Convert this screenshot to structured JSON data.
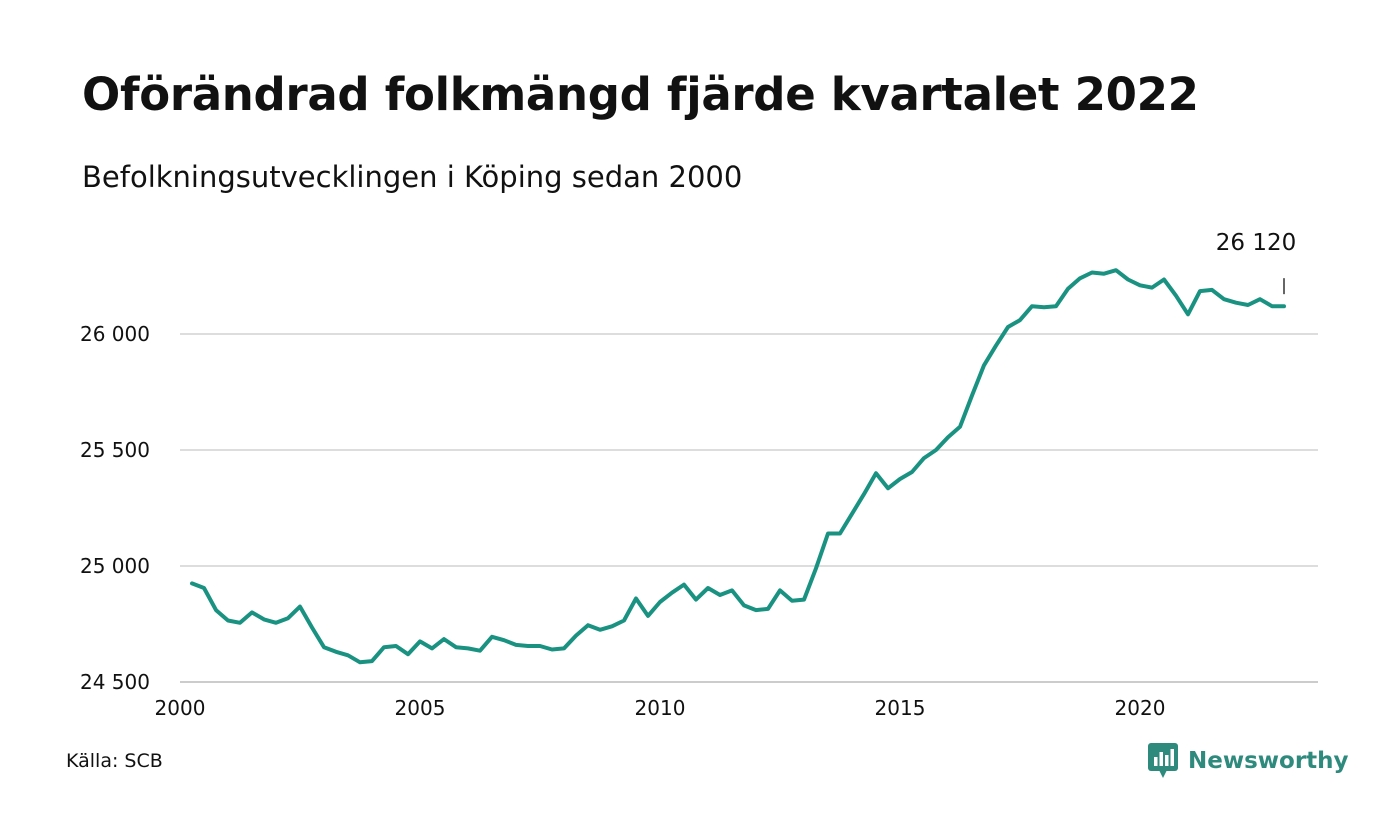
{
  "title": "Oförändrad folkmängd fjärde kvartalet 2022",
  "subtitle": "Befolkningsutvecklingen i Köping sedan 2000",
  "source": "Källa: SCB",
  "brand": {
    "name": "Newsworthy",
    "icon": "chart-speech-bubble-icon",
    "color": "#2f8a7e"
  },
  "chart_data": {
    "type": "line",
    "title": "Oförändrad folkmängd fjärde kvartalet 2022",
    "subtitle": "Befolkningsutvecklingen i Köping sedan 2000",
    "xlabel": "",
    "ylabel": "",
    "xlim": [
      2000,
      2023.5
    ],
    "ylim": [
      24500,
      26450
    ],
    "x_ticks": [
      2000,
      2005,
      2010,
      2015,
      2020
    ],
    "x_tick_labels": [
      "2000",
      "2005",
      "2010",
      "2015",
      "2020"
    ],
    "y_ticks": [
      24500,
      25000,
      25500,
      26000
    ],
    "y_tick_labels": [
      "24 500",
      "25 000",
      "25 500",
      "26 000"
    ],
    "grid": "horizontal",
    "line_color": "#1a9282",
    "end_label": "26 120",
    "series": [
      {
        "x": [
          2000.25,
          2000.5,
          2000.75,
          2001.0,
          2001.25,
          2001.5,
          2001.75,
          2002.0,
          2002.25,
          2002.5,
          2002.75,
          2003.0,
          2003.25,
          2003.5,
          2003.75,
          2004.0,
          2004.25,
          2004.5,
          2004.75,
          2005.0,
          2005.25,
          2005.5,
          2005.75,
          2006.0,
          2006.25,
          2006.5,
          2006.75,
          2007.0,
          2007.25,
          2007.5,
          2007.75,
          2008.0,
          2008.25,
          2008.5,
          2008.75,
          2009.0,
          2009.25,
          2009.5,
          2009.75,
          2010.0,
          2010.25,
          2010.5,
          2010.75,
          2011.0,
          2011.25,
          2011.5,
          2011.75,
          2012.0,
          2012.25,
          2012.5,
          2012.75,
          2013.0,
          2013.25,
          2013.5,
          2013.75,
          2014.0,
          2014.25,
          2014.5,
          2014.75,
          2015.0,
          2015.25,
          2015.5,
          2015.75,
          2016.0,
          2016.25,
          2016.5,
          2016.75,
          2017.0,
          2017.25,
          2017.5,
          2017.75,
          2018.0,
          2018.25,
          2018.5,
          2018.75,
          2019.0,
          2019.25,
          2019.5,
          2019.75,
          2020.0,
          2020.25,
          2020.5,
          2020.75,
          2021.0,
          2021.25,
          2021.5,
          2021.75,
          2022.0,
          2022.25,
          2022.5,
          2022.75,
          2023.0
        ],
        "values": [
          24925,
          24905,
          24810,
          24765,
          24755,
          24800,
          24770,
          24755,
          24775,
          24825,
          24735,
          24650,
          24630,
          24615,
          24585,
          24590,
          24650,
          24655,
          24620,
          24675,
          24645,
          24685,
          24650,
          24645,
          24635,
          24695,
          24680,
          24660,
          24655,
          24655,
          24640,
          24645,
          24700,
          24745,
          24725,
          24740,
          24765,
          24860,
          24785,
          24845,
          24885,
          24920,
          24855,
          24905,
          24875,
          24895,
          24830,
          24810,
          24815,
          24895,
          24850,
          24855,
          24990,
          25140,
          25140,
          25225,
          25310,
          25400,
          25335,
          25375,
          25405,
          25465,
          25500,
          25555,
          25600,
          25735,
          25865,
          25950,
          26030,
          26060,
          26120,
          26115,
          26120,
          26195,
          26240,
          26265,
          26260,
          26275,
          26235,
          26210,
          26200,
          26235,
          26165,
          26085,
          26185,
          26190,
          26150,
          26135,
          26125,
          26150,
          26120,
          26120
        ]
      }
    ]
  }
}
